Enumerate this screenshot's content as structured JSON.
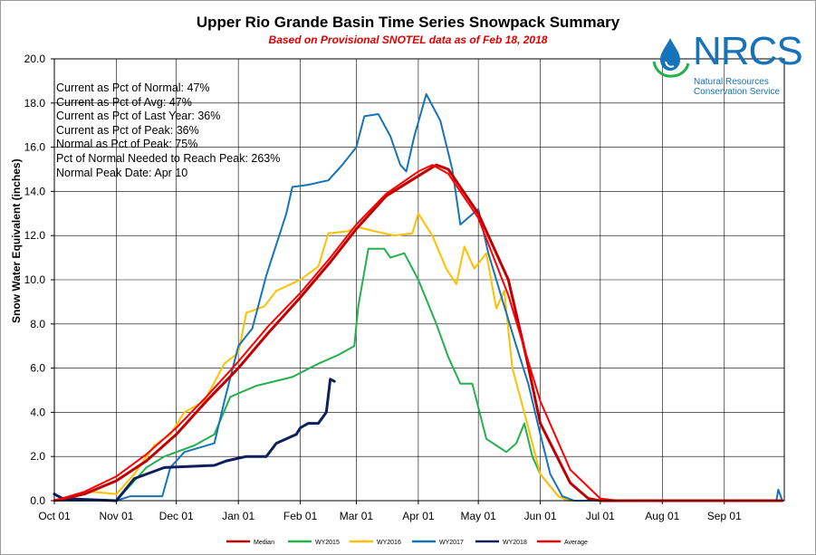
{
  "title": "Upper Rio Grande Basin Time Series Snowpack Summary",
  "subtitle": "Based on Provisional SNOTEL data as of Feb 18, 2018",
  "stats": [
    "Current  as Pct of Normal: 47%",
    "Current  as Pct of Avg: 47%",
    "Current  as Pct of Last Year: 36%",
    "Current  as Pct of Peak: 36%",
    "Normal as Pct of Peak: 75%",
    "Pct of Normal Needed to Reach Peak: 263%",
    "Normal Peak Date: Apr 10"
  ],
  "logo": {
    "name": "NRCS",
    "line1": "Natural Resources",
    "line2": "Conservation Service",
    "icon": "water-drop-icon"
  },
  "chart_data": {
    "type": "line",
    "title": "Upper Rio Grande Basin Time Series Snowpack Summary",
    "subtitle": "Based on Provisional SNOTEL data as of Feb 18, 2018",
    "ylabel": "Snow Water Equivalent (inches)",
    "xlabel": "",
    "ylim": [
      0,
      20
    ],
    "yticks": [
      "0.0",
      "2.0",
      "4.0",
      "6.0",
      "8.0",
      "10.0",
      "12.0",
      "14.0",
      "16.0",
      "18.0",
      "20.0"
    ],
    "xticks": [
      "Oct 01",
      "Nov 01",
      "Dec 01",
      "Jan 01",
      "Feb 01",
      "Mar 01",
      "Apr 01",
      "May 01",
      "Jun 01",
      "Jul 01",
      "Aug 01",
      "Sep 01"
    ],
    "grid": true,
    "legend_position": "bottom",
    "series": [
      {
        "name": "Median",
        "color": "#c00000",
        "width": 3,
        "points": [
          [
            "Oct 01",
            0.0
          ],
          [
            "Oct 16",
            0.3
          ],
          [
            "Nov 01",
            0.9
          ],
          [
            "Nov 16",
            1.8
          ],
          [
            "Dec 01",
            3.0
          ],
          [
            "Dec 16",
            4.5
          ],
          [
            "Jan 01",
            6.0
          ],
          [
            "Jan 16",
            7.6
          ],
          [
            "Feb 01",
            9.2
          ],
          [
            "Feb 16",
            10.8
          ],
          [
            "Mar 01",
            12.3
          ],
          [
            "Mar 16",
            13.8
          ],
          [
            "Apr 01",
            14.7
          ],
          [
            "Apr 10",
            15.2
          ],
          [
            "Apr 16",
            15.0
          ],
          [
            "May 01",
            13.0
          ],
          [
            "May 16",
            10.0
          ],
          [
            "May 25",
            6.5
          ],
          [
            "Jun 01",
            3.5
          ],
          [
            "Jun 16",
            0.8
          ],
          [
            "Jun 25",
            0.1
          ],
          [
            "Jul 01",
            0.0
          ],
          [
            "Sep 30",
            0.0
          ]
        ]
      },
      {
        "name": "WY2015",
        "color": "#22b14c",
        "width": 2,
        "points": [
          [
            "Oct 01",
            0.0
          ],
          [
            "Nov 01",
            0.0
          ],
          [
            "Nov 16",
            1.5
          ],
          [
            "Nov 25",
            2.0
          ],
          [
            "Dec 10",
            2.5
          ],
          [
            "Dec 20",
            3.0
          ],
          [
            "Dec 28",
            4.7
          ],
          [
            "Jan 10",
            5.2
          ],
          [
            "Jan 28",
            5.6
          ],
          [
            "Feb 10",
            6.2
          ],
          [
            "Feb 20",
            6.6
          ],
          [
            "Feb 28",
            7.0
          ],
          [
            "Mar 02",
            8.8
          ],
          [
            "Mar 07",
            11.4
          ],
          [
            "Mar 15",
            11.4
          ],
          [
            "Mar 18",
            11.0
          ],
          [
            "Mar 25",
            11.2
          ],
          [
            "Apr 01",
            10.0
          ],
          [
            "Apr 10",
            8.0
          ],
          [
            "Apr 16",
            6.5
          ],
          [
            "Apr 22",
            5.3
          ],
          [
            "Apr 28",
            5.3
          ],
          [
            "May 05",
            2.8
          ],
          [
            "May 10",
            2.5
          ],
          [
            "May 15",
            2.2
          ],
          [
            "May 20",
            2.6
          ],
          [
            "May 24",
            3.5
          ],
          [
            "May 28",
            2.0
          ],
          [
            "Jun 01",
            1.2
          ],
          [
            "Jun 10",
            0.2
          ],
          [
            "Jun 15",
            0.0
          ],
          [
            "Sep 30",
            0.0
          ]
        ]
      },
      {
        "name": "WY2016",
        "color": "#ffc000",
        "width": 2,
        "points": [
          [
            "Oct 01",
            0.0
          ],
          [
            "Oct 20",
            0.4
          ],
          [
            "Nov 01",
            0.3
          ],
          [
            "Nov 10",
            1.2
          ],
          [
            "Nov 20",
            2.5
          ],
          [
            "Nov 28",
            3.0
          ],
          [
            "Dec 05",
            4.0
          ],
          [
            "Dec 15",
            4.5
          ],
          [
            "Dec 25",
            6.2
          ],
          [
            "Jan 01",
            6.7
          ],
          [
            "Jan 05",
            8.5
          ],
          [
            "Jan 14",
            8.8
          ],
          [
            "Jan 20",
            9.5
          ],
          [
            "Feb 01",
            10.0
          ],
          [
            "Feb 10",
            10.6
          ],
          [
            "Feb 15",
            12.1
          ],
          [
            "Feb 25",
            12.2
          ],
          [
            "Mar 01",
            12.4
          ],
          [
            "Mar 10",
            12.2
          ],
          [
            "Mar 20",
            12.0
          ],
          [
            "Mar 29",
            12.1
          ],
          [
            "Apr 01",
            13.0
          ],
          [
            "Apr 08",
            12.0
          ],
          [
            "Apr 15",
            10.5
          ],
          [
            "Apr 20",
            9.8
          ],
          [
            "Apr 24",
            11.5
          ],
          [
            "Apr 29",
            10.5
          ],
          [
            "May 05",
            11.2
          ],
          [
            "May 10",
            8.7
          ],
          [
            "May 14",
            9.5
          ],
          [
            "May 18",
            6.0
          ],
          [
            "May 24",
            4.0
          ],
          [
            "Jun 01",
            1.2
          ],
          [
            "Jun 10",
            0.2
          ],
          [
            "Jun 15",
            0.0
          ],
          [
            "Sep 30",
            0.0
          ]
        ]
      },
      {
        "name": "WY2017",
        "color": "#1673b9",
        "width": 2,
        "points": [
          [
            "Oct 01",
            0.0
          ],
          [
            "Nov 01",
            0.0
          ],
          [
            "Nov 08",
            0.2
          ],
          [
            "Nov 24",
            0.2
          ],
          [
            "Nov 28",
            1.5
          ],
          [
            "Dec 05",
            2.2
          ],
          [
            "Dec 20",
            2.6
          ],
          [
            "Dec 25",
            4.5
          ],
          [
            "Jan 01",
            7.0
          ],
          [
            "Jan 08",
            7.8
          ],
          [
            "Jan 15",
            10.2
          ],
          [
            "Jan 25",
            13.0
          ],
          [
            "Jan 28",
            14.2
          ],
          [
            "Feb 05",
            14.3
          ],
          [
            "Feb 15",
            14.5
          ],
          [
            "Feb 22",
            15.2
          ],
          [
            "Mar 01",
            16.0
          ],
          [
            "Mar 05",
            17.4
          ],
          [
            "Mar 12",
            17.5
          ],
          [
            "Mar 18",
            16.5
          ],
          [
            "Mar 23",
            15.2
          ],
          [
            "Mar 26",
            14.9
          ],
          [
            "Mar 30",
            16.5
          ],
          [
            "Apr 05",
            18.4
          ],
          [
            "Apr 12",
            17.2
          ],
          [
            "Apr 18",
            15.0
          ],
          [
            "Apr 22",
            12.5
          ],
          [
            "May 01",
            13.2
          ],
          [
            "May 06",
            11.2
          ],
          [
            "May 10",
            10.0
          ],
          [
            "May 20",
            7.0
          ],
          [
            "May 26",
            5.3
          ],
          [
            "Jun 01",
            3.0
          ],
          [
            "Jun 06",
            1.2
          ],
          [
            "Jun 12",
            0.2
          ],
          [
            "Jun 18",
            0.0
          ],
          [
            "Sep 27",
            0.0
          ],
          [
            "Sep 28",
            0.5
          ],
          [
            "Sep 30",
            0.0
          ]
        ]
      },
      {
        "name": "WY2018",
        "color": "#0d1f5c",
        "width": 3,
        "points": [
          [
            "Oct 01",
            0.3
          ],
          [
            "Oct 05",
            0.1
          ],
          [
            "Nov 01",
            0.0
          ],
          [
            "Nov 10",
            1.0
          ],
          [
            "Nov 25",
            1.5
          ],
          [
            "Dec 20",
            1.6
          ],
          [
            "Dec 26",
            1.8
          ],
          [
            "Jan 05",
            2.0
          ],
          [
            "Jan 15",
            2.0
          ],
          [
            "Jan 20",
            2.6
          ],
          [
            "Jan 30",
            3.0
          ],
          [
            "Feb 01",
            3.3
          ],
          [
            "Feb 05",
            3.5
          ],
          [
            "Feb 10",
            3.5
          ],
          [
            "Feb 14",
            4.0
          ],
          [
            "Feb 16",
            5.5
          ],
          [
            "Feb 18",
            5.4
          ]
        ]
      },
      {
        "name": "Average",
        "color": "#ff0000",
        "width": 2,
        "points": [
          [
            "Oct 01",
            0.0
          ],
          [
            "Oct 16",
            0.4
          ],
          [
            "Nov 01",
            1.1
          ],
          [
            "Nov 16",
            2.1
          ],
          [
            "Dec 01",
            3.3
          ],
          [
            "Dec 16",
            4.7
          ],
          [
            "Jan 01",
            6.3
          ],
          [
            "Jan 16",
            7.9
          ],
          [
            "Feb 01",
            9.4
          ],
          [
            "Feb 16",
            11.0
          ],
          [
            "Mar 01",
            12.5
          ],
          [
            "Mar 16",
            13.9
          ],
          [
            "Apr 01",
            14.9
          ],
          [
            "Apr 08",
            15.2
          ],
          [
            "Apr 16",
            14.8
          ],
          [
            "May 01",
            12.8
          ],
          [
            "May 16",
            9.3
          ],
          [
            "Jun 01",
            4.5
          ],
          [
            "Jun 16",
            1.4
          ],
          [
            "Jul 01",
            0.1
          ],
          [
            "Jul 10",
            0.0
          ],
          [
            "Sep 30",
            0.0
          ]
        ]
      }
    ]
  }
}
